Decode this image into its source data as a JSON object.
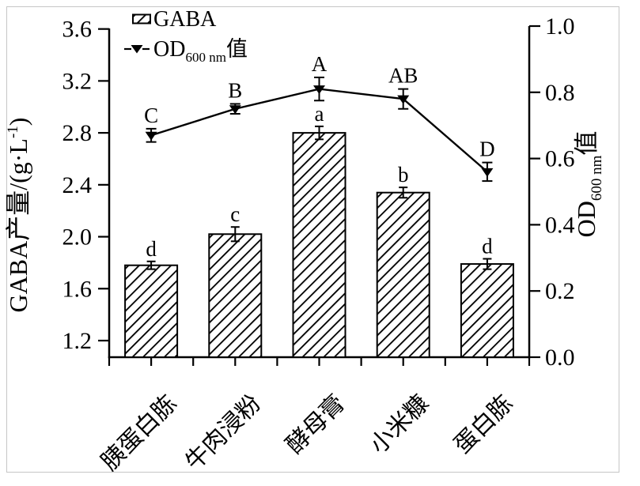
{
  "figure": {
    "background": "#ffffff",
    "ink_color": "#000000",
    "scan_frame_color": "#c6c6c6"
  },
  "chart_data": {
    "type": "bar",
    "subtype": "dual-axis bar + line with error bars",
    "title": "",
    "grid": false,
    "categories": [
      "胰蛋白胨",
      "牛肉浸粉",
      "酵母膏",
      "小米糠",
      "蛋白胨"
    ],
    "series": [
      {
        "name": "GABA",
        "type": "bar",
        "axis": "left",
        "values": [
          1.78,
          2.02,
          2.8,
          2.34,
          1.79
        ],
        "errors": [
          0.03,
          0.055,
          0.05,
          0.04,
          0.04
        ],
        "sig_letters": [
          "d",
          "c",
          "a",
          "b",
          "d"
        ],
        "fill": "white-with-diagonal-hatch",
        "color": "#000000"
      },
      {
        "name": "OD600nm值",
        "type": "line",
        "axis": "right",
        "values": [
          0.67,
          0.75,
          0.81,
          0.78,
          0.56
        ],
        "errors": [
          0.02,
          0.015,
          0.035,
          0.03,
          0.028
        ],
        "sig_letters": [
          "C",
          "B",
          "A",
          "AB",
          "D"
        ],
        "marker": "triangle-down-filled",
        "color": "#000000"
      }
    ],
    "left_axis": {
      "label": "GABA产量/(g·L⁻¹)",
      "label_prefix": "GABA产量/(g·L",
      "label_sup": "-1",
      "label_suffix": ")",
      "ticks": [
        3.6,
        3.2,
        2.8,
        2.4,
        2.0,
        1.6,
        1.2
      ],
      "tick_labels": [
        "3.6",
        "3.2",
        "2.8",
        "2.4",
        "2.0",
        "1.6",
        "1.2"
      ],
      "range_bottom_at_baseline": 1.085,
      "range": [
        1.2,
        3.6
      ]
    },
    "right_axis": {
      "label": "OD600nm值",
      "label_main": "OD",
      "label_sub": "600 nm",
      "label_suffix": "值",
      "ticks": [
        1.0,
        0.8,
        0.6,
        0.4,
        0.2,
        0.0
      ],
      "tick_labels": [
        "1.0",
        "0.8",
        "0.6",
        "0.4",
        "0.2",
        "0.0"
      ],
      "range": [
        0.0,
        1.0
      ]
    },
    "legend": {
      "position": "inside-top-left",
      "entries": [
        {
          "label": "GABA",
          "key": "hatched-box"
        },
        {
          "label_main": "OD",
          "label_sub": "600 nm",
          "label_suffix": "值",
          "key": "dash-triangle-dash"
        }
      ]
    }
  }
}
